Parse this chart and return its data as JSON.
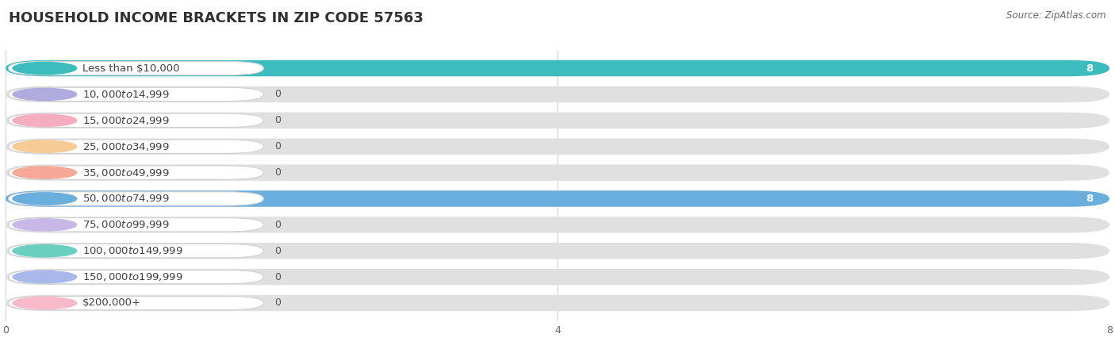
{
  "title": "HOUSEHOLD INCOME BRACKETS IN ZIP CODE 57563",
  "source": "Source: ZipAtlas.com",
  "categories": [
    "Less than $10,000",
    "$10,000 to $14,999",
    "$15,000 to $24,999",
    "$25,000 to $34,999",
    "$35,000 to $49,999",
    "$50,000 to $74,999",
    "$75,000 to $99,999",
    "$100,000 to $149,999",
    "$150,000 to $199,999",
    "$200,000+"
  ],
  "values": [
    8,
    0,
    0,
    0,
    0,
    8,
    0,
    0,
    0,
    0
  ],
  "bar_colors": [
    "#3dbcbe",
    "#b0ace0",
    "#f7adc0",
    "#f7cb96",
    "#f7a898",
    "#6aaede",
    "#c8b8e8",
    "#6acec0",
    "#a8b8ea",
    "#f8baca"
  ],
  "xlim": [
    0,
    8
  ],
  "xticks": [
    0,
    4,
    8
  ],
  "bg_color": "#ffffff",
  "plot_bg_color": "#f0f0f0",
  "bar_bg_color": "#e0e0e0",
  "title_fontsize": 13,
  "label_fontsize": 9.5
}
